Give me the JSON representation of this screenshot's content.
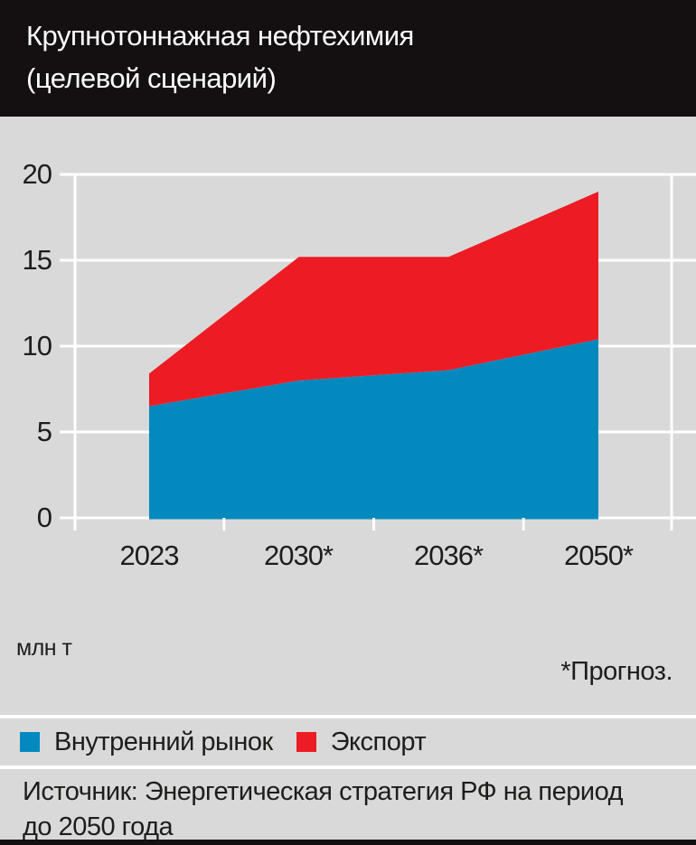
{
  "header": {
    "title_line1": "Крупнотоннажная нефтехимия",
    "title_line2": "(целевой сценарий)"
  },
  "chart_data": {
    "type": "area",
    "stacked": true,
    "title": "Крупнотоннажная нефтехимия (целевой сценарий)",
    "categories": [
      "2023",
      "2030*",
      "2036*",
      "2050*"
    ],
    "series": [
      {
        "name": "Внутренний рынок",
        "color": "#0489be",
        "values": [
          6.5,
          8.0,
          8.6,
          10.4
        ]
      },
      {
        "name": "Экспорт",
        "color": "#ed1c24",
        "values": [
          1.9,
          7.2,
          6.6,
          8.6
        ]
      }
    ],
    "totals": [
      8.4,
      15.2,
      15.2,
      19.0
    ],
    "unit": "млн т",
    "ylabel": "млн т",
    "ylim": [
      0,
      20
    ],
    "yticks": [
      0,
      5,
      10,
      15,
      20
    ],
    "grid": true,
    "legend_position": "bottom",
    "footnote": "*Прогноз.",
    "source_line1": "Источник: Энергетическая стратегия РФ на период",
    "source_line2": "до 2050 года"
  },
  "colors": {
    "background": "#d9d9d9",
    "header_bg": "#141011",
    "grid": "#ffffff",
    "text": "#1d1d1b",
    "title_text": "#ffffff",
    "domestic": "#0489be",
    "export": "#ed1c24"
  }
}
